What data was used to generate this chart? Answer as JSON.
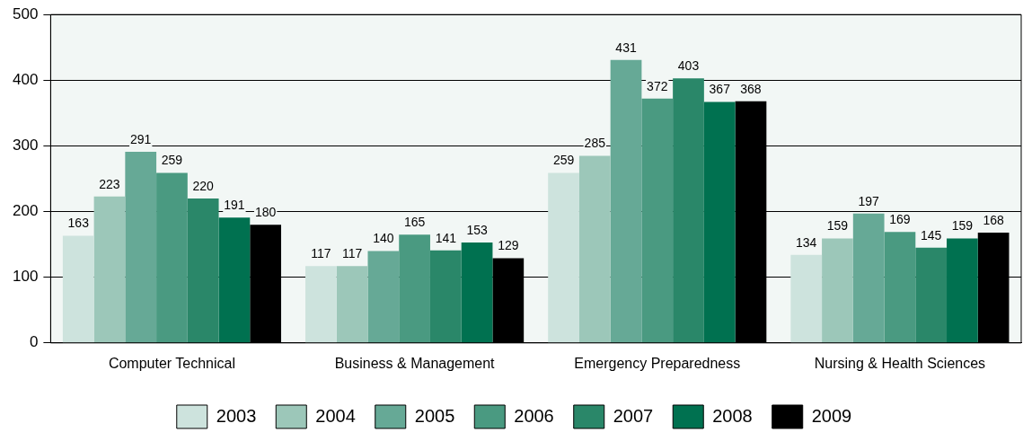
{
  "chart_data": {
    "type": "bar",
    "categories": [
      "Computer Technical",
      "Business & Management",
      "Emergency Preparedness",
      "Nursing & Health Sciences"
    ],
    "series": [
      {
        "name": "2003",
        "color": "#cde3dd",
        "values": [
          163,
          117,
          259,
          134
        ]
      },
      {
        "name": "2004",
        "color": "#9cc7b9",
        "values": [
          223,
          117,
          285,
          159
        ]
      },
      {
        "name": "2005",
        "color": "#66a996",
        "values": [
          291,
          140,
          431,
          197
        ]
      },
      {
        "name": "2006",
        "color": "#4a9a81",
        "values": [
          259,
          165,
          372,
          169
        ]
      },
      {
        "name": "2007",
        "color": "#2a8769",
        "values": [
          220,
          141,
          403,
          145
        ]
      },
      {
        "name": "2008",
        "color": "#007150",
        "values": [
          191,
          153,
          367,
          159
        ]
      },
      {
        "name": "2009",
        "color": "#000000",
        "values": [
          180,
          129,
          368,
          168
        ]
      }
    ],
    "ylim": [
      0,
      500
    ],
    "yticks": [
      0,
      100,
      200,
      300,
      400,
      500
    ],
    "grid": "y",
    "legend": "bottom",
    "data_labels": true
  }
}
